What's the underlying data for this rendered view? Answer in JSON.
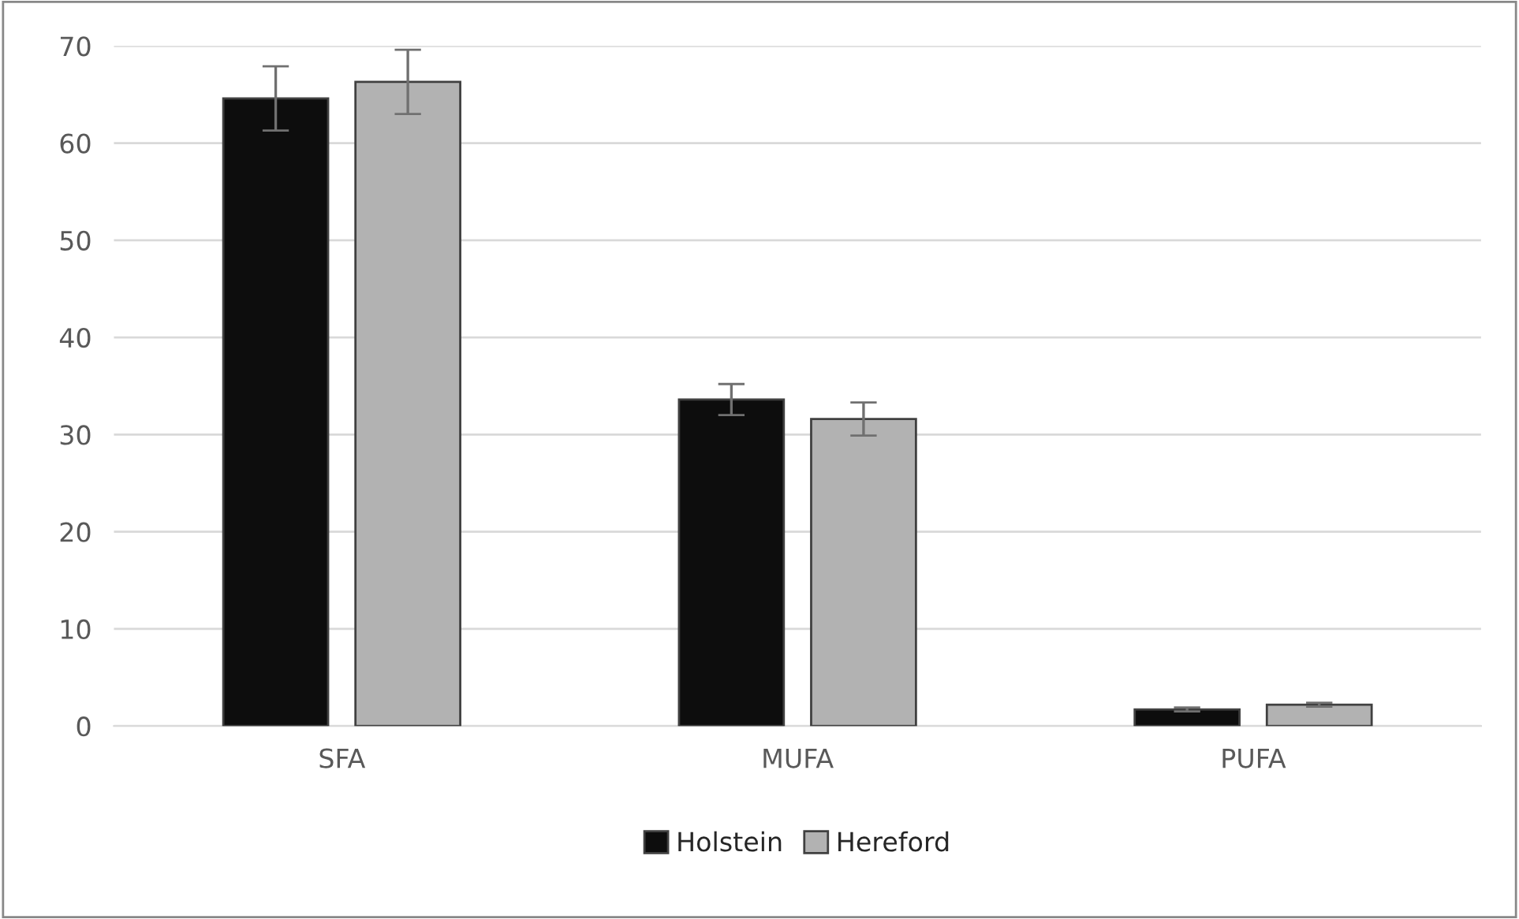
{
  "chart_data": {
    "type": "bar",
    "categories": [
      "SFA",
      "MUFA",
      "PUFA"
    ],
    "series": [
      {
        "name": "Holstein",
        "color": "#0d0d0d",
        "values": [
          64.6,
          33.6,
          1.7
        ],
        "errors": [
          3.3,
          1.6,
          0.2
        ]
      },
      {
        "name": "Hereford",
        "color": "#b2b2b2",
        "values": [
          66.3,
          31.6,
          2.2
        ],
        "errors": [
          3.3,
          1.7,
          0.2
        ]
      }
    ],
    "ylim": [
      0,
      70
    ],
    "yticks": [
      0,
      10,
      20,
      30,
      40,
      50,
      60,
      70
    ],
    "grid": "y",
    "legend": "bottom"
  }
}
